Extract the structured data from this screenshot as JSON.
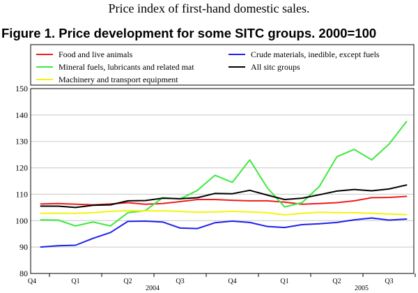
{
  "page": {
    "heading": "Price index of first-hand domestic sales."
  },
  "chart_data": {
    "type": "line",
    "title": "Figure 1. Price development for some SITC groups. 2000=100",
    "xlabel": "",
    "ylabel": "",
    "ylim": [
      80,
      150
    ],
    "yticks": [
      80,
      90,
      100,
      110,
      120,
      130,
      140,
      150
    ],
    "grid": true,
    "legend_position": "top",
    "quarter_labels": [
      "Q4",
      "Q1",
      "Q2",
      "Q3",
      "Q4",
      "Q1",
      "Q2",
      "Q3"
    ],
    "year_labels": [
      "2004",
      "2005"
    ],
    "months": 22,
    "series": [
      {
        "name": "Food and live animals",
        "color": "#ee1c1c",
        "values": [
          106.3,
          106.5,
          106.2,
          106.0,
          106.3,
          106.8,
          106.2,
          106.5,
          107.2,
          108.0,
          108.0,
          107.7,
          107.5,
          107.5,
          107.0,
          106.2,
          106.5,
          106.8,
          107.5,
          108.7,
          108.8,
          109.2
        ]
      },
      {
        "name": "Crude materials, inedible, except fuels",
        "color": "#1f1fee",
        "values": [
          90.0,
          90.5,
          90.7,
          93.3,
          95.5,
          99.7,
          99.8,
          99.5,
          97.2,
          97.0,
          99.2,
          99.8,
          99.3,
          97.8,
          97.4,
          98.5,
          98.8,
          99.3,
          100.3,
          101.0,
          100.2,
          100.6
        ]
      },
      {
        "name": "Mineral fuels, lubricants and related mat",
        "color": "#3ee83e",
        "values": [
          100.3,
          100.2,
          98.0,
          99.5,
          98.0,
          103.0,
          103.8,
          108.7,
          108.2,
          111.5,
          117.2,
          114.5,
          123.0,
          112.5,
          105.2,
          106.8,
          113.0,
          124.2,
          127.0,
          123.0,
          129.0,
          137.5
        ]
      },
      {
        "name": "All sitc groups",
        "color": "#000000",
        "values": [
          105.5,
          105.5,
          105.0,
          105.8,
          106.0,
          107.5,
          107.6,
          108.5,
          108.3,
          108.7,
          110.3,
          110.2,
          111.5,
          109.7,
          108.0,
          108.5,
          109.8,
          111.2,
          111.8,
          111.3,
          112.0,
          113.5
        ]
      },
      {
        "name": "Machinery and transport equipment",
        "color": "#f4f40b",
        "values": [
          102.8,
          102.8,
          102.8,
          103.0,
          103.5,
          103.8,
          103.7,
          103.7,
          103.5,
          103.2,
          103.3,
          103.5,
          103.3,
          103.0,
          102.2,
          102.8,
          103.2,
          103.0,
          103.0,
          102.8,
          102.5,
          102.3
        ]
      }
    ]
  }
}
